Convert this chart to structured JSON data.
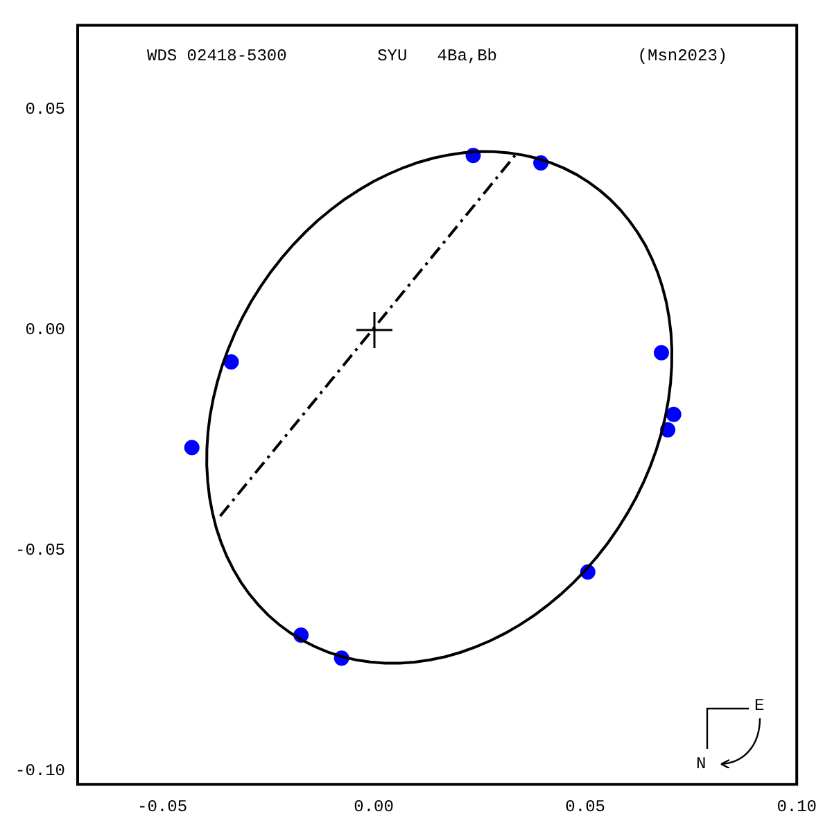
{
  "chart_data": {
    "type": "scatter",
    "title": "SYU   4Ba,Bb",
    "subtitle": "WDS 02418-5300",
    "annotations": [
      "(Msn2023)",
      "E",
      "N"
    ],
    "xlim": [
      -0.07,
      0.1
    ],
    "ylim": [
      -0.103,
      0.069
    ],
    "xticks": [
      {
        "value": -0.05,
        "label": "-0.05"
      },
      {
        "value": 0,
        "label": "0.00"
      },
      {
        "value": 0.05,
        "label": "0.05"
      },
      {
        "value": 0.1,
        "label": "0.10"
      }
    ],
    "yticks": [
      {
        "value": -0.1,
        "label": "-0.10"
      },
      {
        "value": -0.05,
        "label": "-0.05"
      },
      {
        "value": 0,
        "label": "0.00"
      },
      {
        "value": 0.05,
        "label": "0.05"
      }
    ],
    "grid": false,
    "legend": false,
    "series": [
      {
        "type": "line",
        "color": "#000000",
        "marker": "none",
        "line_style": "dashed",
        "x": [
          -0.0363,
          0.0334
        ],
        "values": [
          -0.0422,
          0.0395
        ]
      },
      {
        "color": "#0000ff",
        "marker": "circle",
        "x": [
          0.0235,
          0.0395,
          -0.0337,
          -0.043,
          0.068,
          0.0709,
          0.0695,
          0.0506,
          -0.0172,
          -0.0076
        ],
        "values": [
          0.0395,
          0.0378,
          -0.0073,
          -0.0267,
          -0.0052,
          -0.0192,
          -0.0227,
          -0.0549,
          -0.0692,
          -0.0744
        ]
      }
    ]
  }
}
